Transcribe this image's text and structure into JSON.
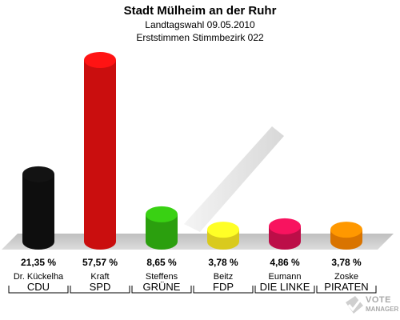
{
  "title": "Stadt Mülheim an der Ruhr",
  "subtitle1": "Landtagswahl 09.05.2010",
  "subtitle2": "Erststimmen Stimmbezirk 022",
  "logo": {
    "line1": "VOTE",
    "line2": "MANAGER",
    "icon": "checkmark-ballot-icon"
  },
  "chart_data": {
    "type": "bar",
    "categories": [
      "CDU",
      "SPD",
      "GRÜNE",
      "FDP",
      "DIE LINKE",
      "PIRATEN"
    ],
    "candidates": [
      "Dr. Kückelha",
      "Kraft",
      "Steffens",
      "Beitz",
      "Eumann",
      "Zoske"
    ],
    "values": [
      21.35,
      57.57,
      8.65,
      3.78,
      4.86,
      3.78
    ],
    "value_labels": [
      "21,35 %",
      "57,57 %",
      "8,65 %",
      "3,78 %",
      "4,86 %",
      "3,78 %"
    ],
    "colors": [
      "#111111",
      "#ee1111",
      "#33bb11",
      "#ffee22",
      "#dd1155",
      "#ff8800"
    ],
    "ylim": [
      0,
      60
    ]
  }
}
